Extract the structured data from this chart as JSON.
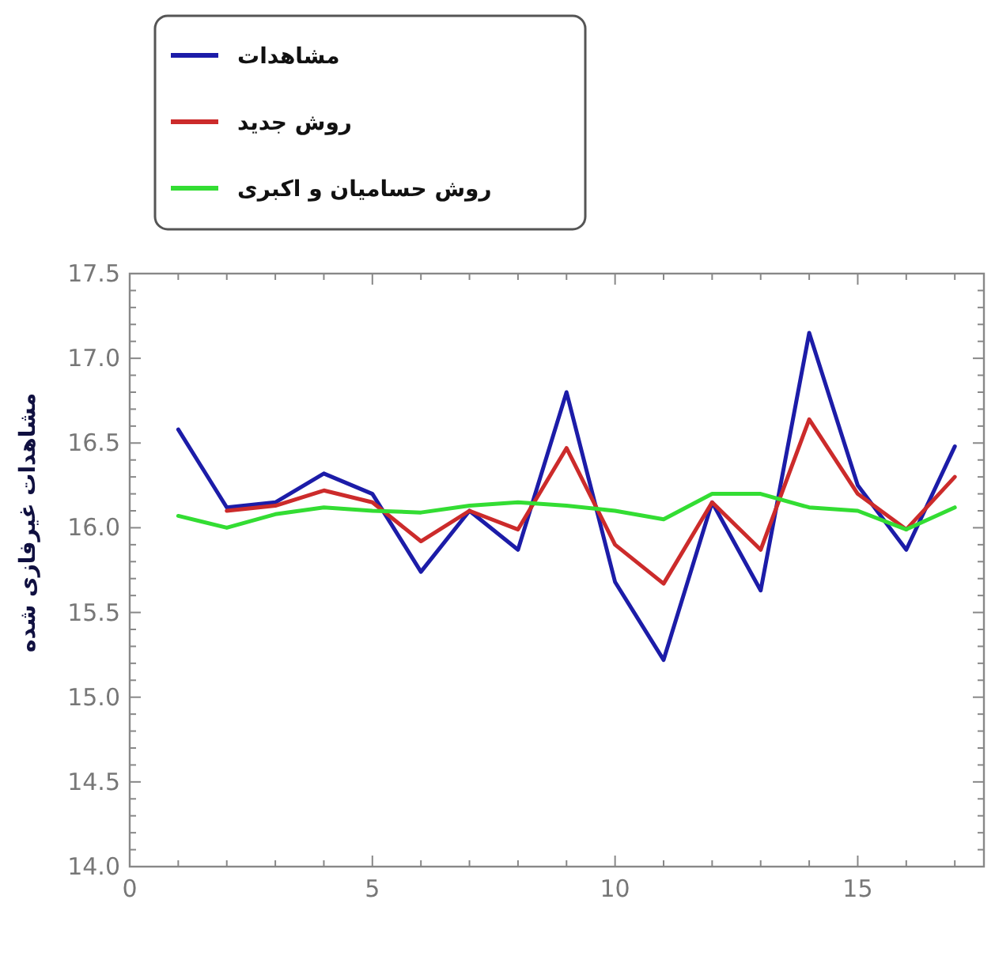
{
  "chart_data": {
    "type": "line",
    "ylabel": "مشاهدات غیرفازی شده",
    "legend": "top left",
    "grid": false,
    "marker": "none",
    "line_style": "solid",
    "x": [
      1,
      2,
      3,
      4,
      5,
      6,
      7,
      8,
      9,
      10,
      11,
      12,
      13,
      14,
      15,
      16,
      17
    ],
    "xlim": [
      0,
      17.6
    ],
    "ylim": [
      14.0,
      17.5
    ],
    "xticks": [
      0,
      {
        "value": 1,
        "label": null
      },
      {
        "value": 2,
        "label": null
      },
      {
        "value": 3,
        "label": null
      },
      {
        "value": 4,
        "label": null
      },
      5,
      {
        "value": 6,
        "label": null
      },
      {
        "value": 7,
        "label": null
      },
      {
        "value": 8,
        "label": null
      },
      {
        "value": 9,
        "label": null
      },
      10,
      {
        "value": 11,
        "label": null
      },
      {
        "value": 12,
        "label": null
      },
      {
        "value": 13,
        "label": null
      },
      {
        "value": 14,
        "label": null
      },
      15,
      {
        "value": 16,
        "label": null
      },
      {
        "value": 17,
        "label": null
      }
    ],
    "yticks": [
      {
        "value": 14.0,
        "label": "14.0"
      },
      14.5,
      {
        "value": 15.0,
        "label": "15.0"
      },
      15.5,
      {
        "value": 16.0,
        "label": "16.0"
      },
      16.5,
      {
        "value": 17.0,
        "label": "17.0"
      },
      17.5
    ],
    "series": [
      {
        "name": "مشاهدات",
        "color": "#1c1ca8",
        "values": [
          16.58,
          16.12,
          16.15,
          16.32,
          16.2,
          15.74,
          16.1,
          15.87,
          16.8,
          15.68,
          15.22,
          16.15,
          15.63,
          17.15,
          16.25,
          15.87,
          16.48
        ]
      },
      {
        "name": "روش جدید",
        "color": "#cc2b2b",
        "values": [
          null,
          16.1,
          16.13,
          16.22,
          16.15,
          15.92,
          16.1,
          15.99,
          16.47,
          15.9,
          15.67,
          16.15,
          15.87,
          16.64,
          16.2,
          15.99,
          16.3
        ]
      },
      {
        "name": "روش حسامیان و اکبری",
        "color": "#33dd33",
        "values": [
          16.07,
          16.0,
          16.08,
          16.12,
          16.1,
          16.09,
          16.13,
          16.15,
          16.13,
          16.1,
          16.05,
          16.2,
          16.2,
          16.12,
          16.1,
          15.99,
          16.12
        ]
      }
    ]
  }
}
